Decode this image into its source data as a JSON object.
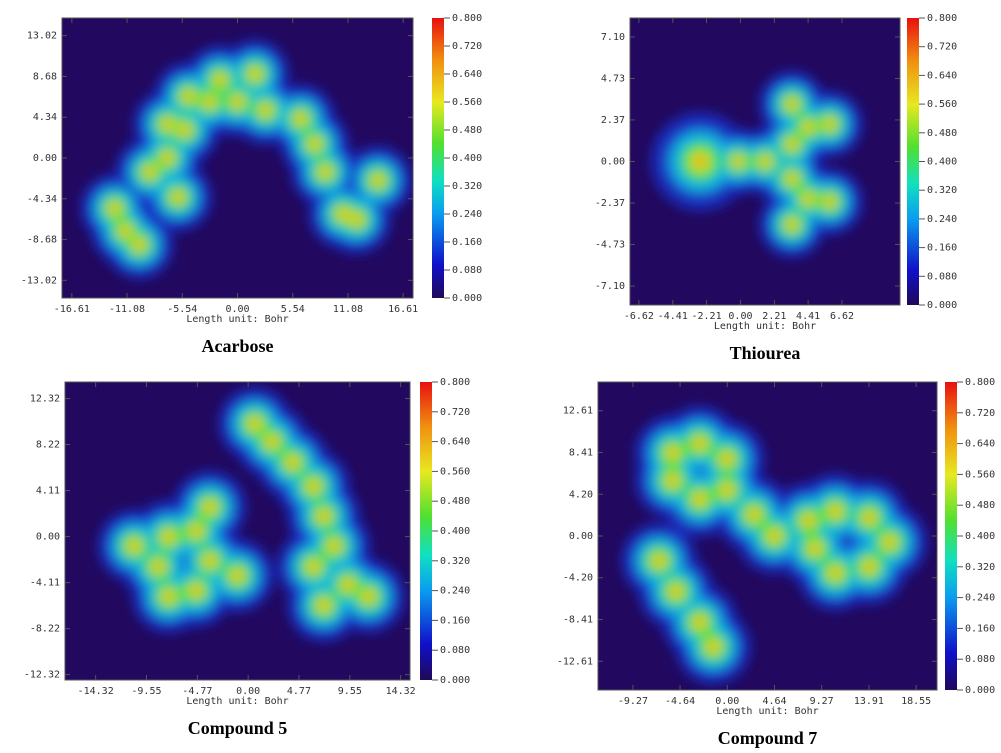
{
  "chart_data": [
    {
      "type": "heatmap",
      "title": "Acarbose",
      "xlabel": "Length unit: Bohr",
      "xlim": [
        -17.6,
        17.6
      ],
      "ylim": [
        -14.9,
        14.9
      ],
      "xticks": [
        -16.61,
        -11.08,
        -5.54,
        {
          "value": 0,
          "label": "0.00"
        },
        5.54,
        11.08,
        16.61
      ],
      "yticks": [
        13.02,
        8.68,
        4.34,
        {
          "value": 0,
          "label": "0.00"
        },
        -4.34,
        -8.68,
        -13.02
      ],
      "clim": [
        0,
        0.8
      ],
      "cticks": [
        {
          "value": 0,
          "label": "0.000"
        },
        {
          "value": 0.08,
          "label": "0.080"
        },
        {
          "value": 0.16,
          "label": "0.160"
        },
        {
          "value": 0.24,
          "label": "0.240"
        },
        {
          "value": 0.32,
          "label": "0.320"
        },
        {
          "value": 0.4,
          "label": "0.400"
        },
        {
          "value": 0.48,
          "label": "0.480"
        },
        {
          "value": 0.56,
          "label": "0.560"
        },
        {
          "value": 0.64,
          "label": "0.640"
        },
        {
          "value": 0.72,
          "label": "0.720"
        },
        {
          "value": 0.8,
          "label": "0.800"
        }
      ]
    },
    {
      "type": "heatmap",
      "title": "Thiourea",
      "xlabel": "Length unit: Bohr",
      "xlim": [
        -7.2,
        10.4
      ],
      "ylim": [
        -8.18,
        8.18
      ],
      "xticks": [
        -6.62,
        -4.41,
        -2.21,
        {
          "value": 0,
          "label": "0.00"
        },
        2.21,
        4.41,
        6.62
      ],
      "yticks": [
        {
          "value": 7.1,
          "label": "7.10"
        },
        4.73,
        2.37,
        {
          "value": 0,
          "label": "0.00"
        },
        -2.37,
        -4.73,
        {
          "value": -7.1,
          "label": "-7.10"
        }
      ],
      "clim": [
        0,
        0.8
      ],
      "cticks": [
        {
          "value": 0,
          "label": "0.000"
        },
        {
          "value": 0.08,
          "label": "0.080"
        },
        {
          "value": 0.16,
          "label": "0.160"
        },
        {
          "value": 0.24,
          "label": "0.240"
        },
        {
          "value": 0.32,
          "label": "0.320"
        },
        {
          "value": 0.4,
          "label": "0.400"
        },
        {
          "value": 0.48,
          "label": "0.480"
        },
        {
          "value": 0.56,
          "label": "0.560"
        },
        {
          "value": 0.64,
          "label": "0.640"
        },
        {
          "value": 0.72,
          "label": "0.720"
        },
        {
          "value": 0.8,
          "label": "0.800"
        }
      ]
    },
    {
      "type": "heatmap",
      "title": "Compound 5",
      "xlabel": "Length unit: Bohr",
      "xlim": [
        -17.2,
        15.2
      ],
      "ylim": [
        -12.8,
        13.8
      ],
      "xticks": [
        -14.32,
        -9.55,
        -4.77,
        {
          "value": 0,
          "label": "0.00"
        },
        4.77,
        9.55,
        14.32
      ],
      "yticks": [
        12.32,
        8.22,
        4.11,
        {
          "value": 0,
          "label": "0.00"
        },
        -4.11,
        -8.22,
        -12.32
      ],
      "clim": [
        0,
        0.8
      ],
      "cticks": [
        {
          "value": 0,
          "label": "0.000"
        },
        {
          "value": 0.08,
          "label": "0.080"
        },
        {
          "value": 0.16,
          "label": "0.160"
        },
        {
          "value": 0.24,
          "label": "0.240"
        },
        {
          "value": 0.32,
          "label": "0.320"
        },
        {
          "value": 0.4,
          "label": "0.400"
        },
        {
          "value": 0.48,
          "label": "0.480"
        },
        {
          "value": 0.56,
          "label": "0.560"
        },
        {
          "value": 0.64,
          "label": "0.640"
        },
        {
          "value": 0.72,
          "label": "0.720"
        },
        {
          "value": 0.8,
          "label": "0.800"
        }
      ]
    },
    {
      "type": "heatmap",
      "title": "Compound 7",
      "xlabel": "Length unit: Bohr",
      "xlim": [
        -12.7,
        20.6
      ],
      "ylim": [
        -15.5,
        15.5
      ],
      "xticks": [
        -9.27,
        -4.64,
        {
          "value": 0,
          "label": "0.00"
        },
        4.64,
        9.27,
        13.91,
        18.55
      ],
      "yticks": [
        12.61,
        8.41,
        {
          "value": 4.2,
          "label": "4.20"
        },
        {
          "value": 0,
          "label": "0.00"
        },
        {
          "value": -4.2,
          "label": "-4.20"
        },
        -8.41,
        -12.61
      ],
      "clim": [
        0,
        0.8
      ],
      "cticks": [
        {
          "value": 0,
          "label": "0.000"
        },
        {
          "value": 0.08,
          "label": "0.080"
        },
        {
          "value": 0.16,
          "label": "0.160"
        },
        {
          "value": 0.24,
          "label": "0.240"
        },
        {
          "value": 0.32,
          "label": "0.320"
        },
        {
          "value": 0.4,
          "label": "0.400"
        },
        {
          "value": 0.48,
          "label": "0.480"
        },
        {
          "value": 0.56,
          "label": "0.560"
        },
        {
          "value": 0.64,
          "label": "0.640"
        },
        {
          "value": 0.72,
          "label": "0.720"
        },
        {
          "value": 0.8,
          "label": "0.800"
        }
      ]
    }
  ]
}
